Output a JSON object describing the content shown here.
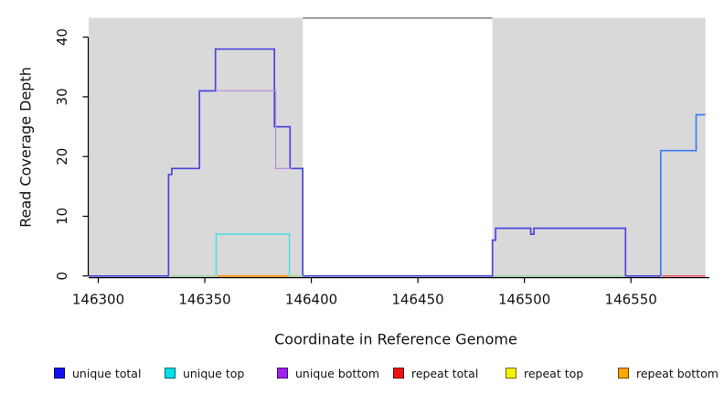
{
  "chart_data": {
    "type": "line",
    "style": "step",
    "xlabel": "Coordinate in Reference Genome",
    "ylabel": "Read Coverage Depth",
    "xlim": [
      146295,
      146587
    ],
    "ylim": [
      0,
      43
    ],
    "x_ticks": [
      146300,
      146350,
      146400,
      146450,
      146500,
      146550
    ],
    "y_ticks": [
      0,
      10,
      20,
      30,
      40
    ],
    "grid": false,
    "legend_position": "bottom",
    "panel_background": "#ffffff",
    "shaded_regions": [
      {
        "x0": 146295.5,
        "x1": 146396,
        "color": "#d9d9d9"
      },
      {
        "x0": 146485,
        "x1": 146585,
        "color": "#d9d9d9"
      }
    ],
    "top_boundary_line": {
      "x0": 146396,
      "x1": 146485,
      "y": 43.2,
      "color": "#7d7d7d",
      "width": 1.5
    },
    "series": [
      {
        "name": "unique-total-main",
        "color": "#4a45dd",
        "width": 1.7,
        "points": [
          [
            146295.5,
            0
          ],
          [
            146333,
            0
          ],
          [
            146333,
            17
          ],
          [
            146334.5,
            17
          ],
          [
            146334.5,
            18
          ],
          [
            146347.5,
            18
          ],
          [
            146347.5,
            31
          ],
          [
            146355,
            31
          ],
          [
            146355,
            38
          ],
          [
            146382.7,
            38
          ],
          [
            146382.7,
            25
          ],
          [
            146390,
            25
          ],
          [
            146390,
            18
          ],
          [
            146396,
            18
          ],
          [
            146396,
            0
          ],
          [
            146485,
            0
          ],
          [
            146485,
            6
          ],
          [
            146486.5,
            6
          ],
          [
            146486.5,
            8
          ],
          [
            146503,
            8
          ],
          [
            146503,
            7
          ],
          [
            146504.5,
            7
          ],
          [
            146504.5,
            8
          ],
          [
            146547.5,
            8
          ],
          [
            146547.5,
            0
          ],
          [
            146564,
            0
          ]
        ]
      },
      {
        "name": "unique-bottom-visible",
        "color": "#bb8fdf",
        "width": 1.3,
        "points": [
          [
            146355,
            31
          ],
          [
            146383.3,
            31
          ],
          [
            146383.3,
            18
          ],
          [
            146390.5,
            18
          ]
        ]
      },
      {
        "name": "unique-top-box",
        "color": "#38e2e8",
        "width": 1.4,
        "points": [
          [
            146355.3,
            0
          ],
          [
            146355.3,
            7
          ],
          [
            146389.7,
            7
          ],
          [
            146389.7,
            0
          ]
        ]
      },
      {
        "name": "baseline-blend-left",
        "color": "#97d097",
        "width": 1.4,
        "points": [
          [
            146334,
            0
          ],
          [
            146355.2,
            0
          ]
        ]
      },
      {
        "name": "baseline-blend-mid",
        "color": "#97d097",
        "width": 1.4,
        "points": [
          [
            146389.5,
            0
          ],
          [
            146396,
            0
          ]
        ]
      },
      {
        "name": "baseline-blend-right",
        "color": "#97d097",
        "width": 1.4,
        "points": [
          [
            146485.4,
            0
          ],
          [
            146547.3,
            0
          ]
        ]
      },
      {
        "name": "repeat-bottom-line",
        "color": "#ff8c00",
        "width": 1.7,
        "points": [
          [
            146355.8,
            0
          ],
          [
            146389.3,
            0
          ]
        ]
      },
      {
        "name": "unique-total-right",
        "color": "#3b7cf2",
        "width": 1.7,
        "points": [
          [
            146564,
            0
          ],
          [
            146564,
            21
          ],
          [
            146580.6,
            21
          ],
          [
            146580.6,
            27
          ],
          [
            146585,
            27
          ]
        ]
      },
      {
        "name": "repeat-total-line",
        "color": "#ee4757",
        "width": 1.4,
        "points": [
          [
            146564.6,
            0
          ],
          [
            146585,
            0
          ]
        ]
      }
    ],
    "legend": [
      {
        "label": "unique total",
        "color": "#1111ee"
      },
      {
        "label": "unique top",
        "color": "#00e0e8"
      },
      {
        "label": "unique bottom",
        "color": "#a020f0"
      },
      {
        "label": "repeat total",
        "color": "#ee1111"
      },
      {
        "label": "repeat top",
        "color": "#f2f200"
      },
      {
        "label": "repeat bottom",
        "color": "#ffa500"
      }
    ]
  }
}
